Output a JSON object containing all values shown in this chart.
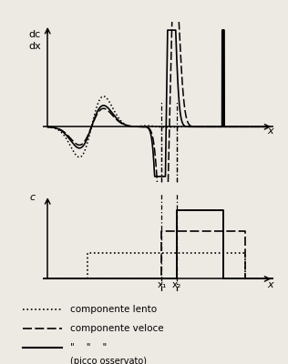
{
  "bg_color": "#ede9e3",
  "top_ylabel": "dc\ndx",
  "bottom_ylabel": "c",
  "xlabel": "x",
  "x1_label": "x₁",
  "x2_label": "x₂",
  "legend_dotted": "componente lento",
  "legend_dashed": "componente veloce",
  "legend_solid_prefix": "\"    \"    \"",
  "legend_solid_suffix": "(picco osservato)"
}
